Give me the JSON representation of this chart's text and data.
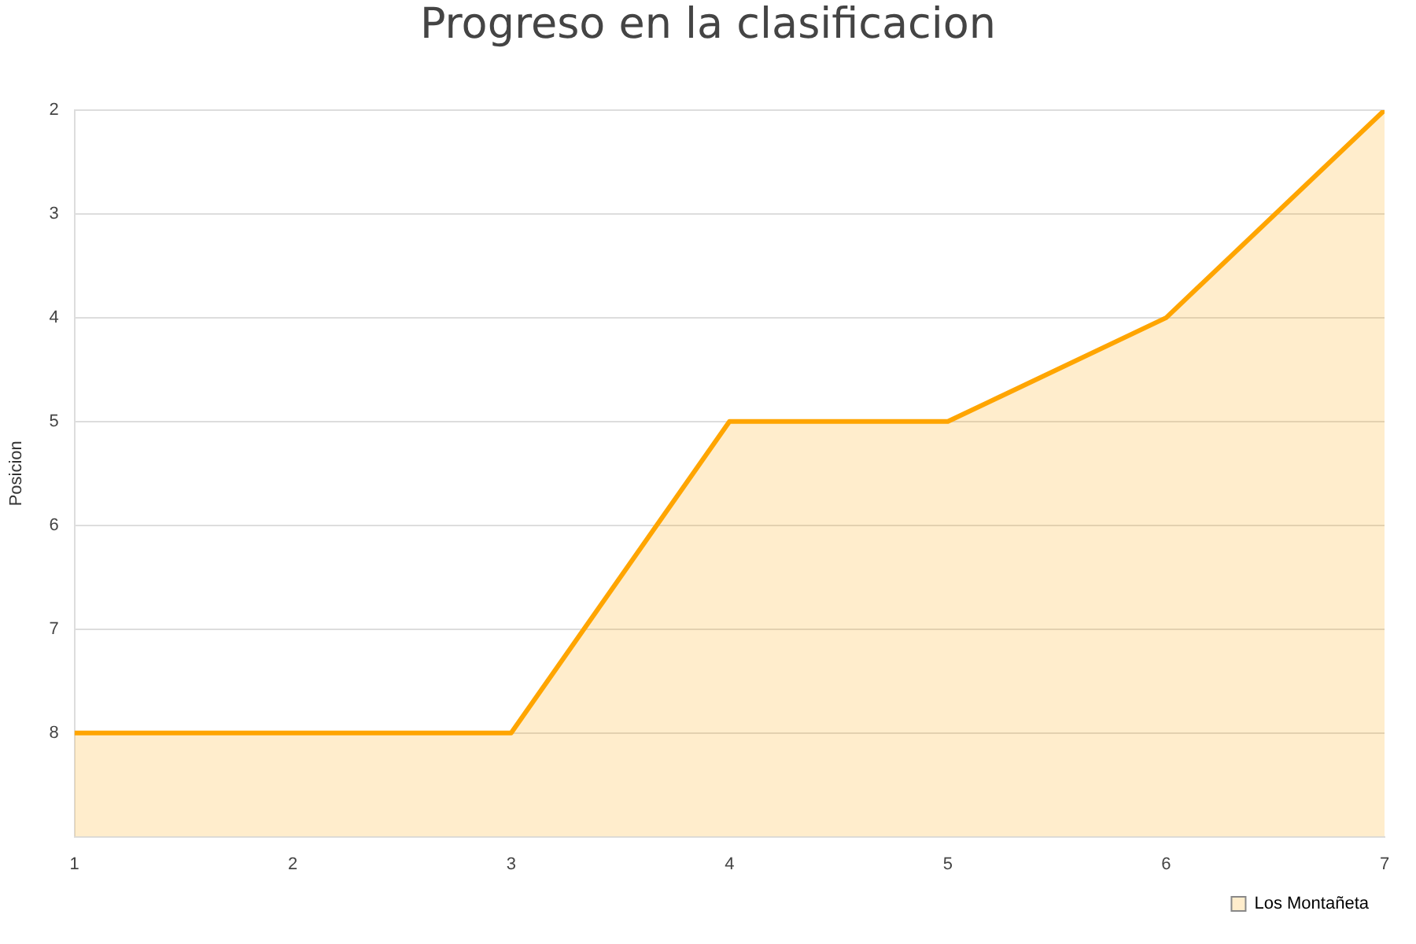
{
  "chart_data": {
    "type": "line",
    "title": "Progreso en la clasificacion",
    "ylabel": "Posicion",
    "x": [
      1,
      2,
      3,
      4,
      5,
      6,
      7
    ],
    "series": [
      {
        "name": "Los Montañeta",
        "color": "#ffa500",
        "values": [
          8,
          8,
          8,
          5,
          5,
          4,
          2
        ],
        "lower": [
          9,
          9,
          9,
          9,
          9,
          9,
          9
        ],
        "upper": [
          8,
          8,
          8,
          5,
          5,
          4,
          2
        ]
      }
    ],
    "xlim": [
      1,
      7
    ],
    "xticks": [
      1,
      2,
      3,
      4,
      5,
      6,
      7
    ],
    "ylim": [
      9,
      2
    ],
    "yticks": [
      2,
      3,
      4,
      5,
      6,
      7,
      8
    ],
    "grid": "y",
    "legend": "bottom right",
    "marker": "none"
  }
}
